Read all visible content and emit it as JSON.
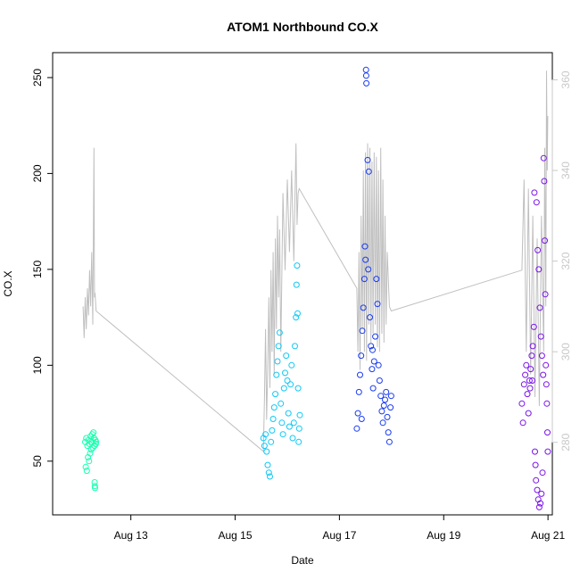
{
  "chart_data": {
    "type": "scatter",
    "title": "ATOM1 Northbound CO.X",
    "xlabel": "Date",
    "ylabel": "CO.X",
    "xlim": [
      "2016-08-11 12:00",
      "2016-08-21 02:00"
    ],
    "ylim": [
      22,
      263
    ],
    "y2lim": [
      264,
      366
    ],
    "grid": false,
    "legend": "none",
    "x_ticks": [
      "2016-08-13",
      "2016-08-15",
      "2016-08-17",
      "2016-08-19",
      "2016-08-21"
    ],
    "x_tick_labels": [
      "Aug 13",
      "Aug 15",
      "Aug 17",
      "Aug 19",
      "Aug 21"
    ],
    "y_ticks": [
      50,
      100,
      150,
      200,
      250
    ],
    "y2_ticks": [
      280,
      300,
      320,
      340,
      360
    ],
    "colors": {
      "background": "#ffffff",
      "axis": "#000000",
      "secondary_axis": "#c8c8c8",
      "secondary_line": "#bfbfbf",
      "point_fill": "none"
    },
    "series": [
      {
        "color": "#19ffb0",
        "points": [
          [
            "2016-08-12 03:00",
            60
          ],
          [
            "2016-08-12 03:30",
            62
          ],
          [
            "2016-08-12 04:00",
            58
          ],
          [
            "2016-08-12 04:30",
            61
          ],
          [
            "2016-08-12 05:00",
            59
          ],
          [
            "2016-08-12 05:30",
            63
          ],
          [
            "2016-08-12 06:00",
            60
          ],
          [
            "2016-08-12 06:30",
            57
          ],
          [
            "2016-08-12 07:00",
            62
          ],
          [
            "2016-08-12 03:15",
            47
          ],
          [
            "2016-08-12 03:45",
            45
          ],
          [
            "2016-08-12 04:15",
            52
          ],
          [
            "2016-08-12 04:45",
            50
          ],
          [
            "2016-08-12 05:15",
            54
          ],
          [
            "2016-08-12 05:45",
            56
          ],
          [
            "2016-08-12 06:15",
            64
          ],
          [
            "2016-08-12 06:45",
            65
          ],
          [
            "2016-08-12 07:15",
            58
          ],
          [
            "2016-08-12 07:20",
            39
          ],
          [
            "2016-08-12 07:25",
            37
          ],
          [
            "2016-08-12 07:30",
            36
          ],
          [
            "2016-08-12 07:40",
            61
          ],
          [
            "2016-08-12 07:50",
            59
          ],
          [
            "2016-08-12 08:00",
            60
          ]
        ]
      },
      {
        "color": "#10c8f5",
        "points": [
          [
            "2016-08-15 13:00",
            62
          ],
          [
            "2016-08-15 13:30",
            58
          ],
          [
            "2016-08-15 14:00",
            64
          ],
          [
            "2016-08-15 14:30",
            55
          ],
          [
            "2016-08-15 15:00",
            48
          ],
          [
            "2016-08-15 15:30",
            44
          ],
          [
            "2016-08-15 16:00",
            42
          ],
          [
            "2016-08-15 16:30",
            60
          ],
          [
            "2016-08-15 17:00",
            66
          ],
          [
            "2016-08-15 17:30",
            72
          ],
          [
            "2016-08-15 18:00",
            78
          ],
          [
            "2016-08-15 18:30",
            85
          ],
          [
            "2016-08-15 19:00",
            95
          ],
          [
            "2016-08-15 19:30",
            102
          ],
          [
            "2016-08-15 20:00",
            110
          ],
          [
            "2016-08-15 20:30",
            117
          ],
          [
            "2016-08-15 21:00",
            80
          ],
          [
            "2016-08-15 21:30",
            70
          ],
          [
            "2016-08-15 22:00",
            64
          ],
          [
            "2016-08-15 22:30",
            88
          ],
          [
            "2016-08-15 23:00",
            96
          ],
          [
            "2016-08-15 23:30",
            105
          ],
          [
            "2016-08-16 00:00",
            92
          ],
          [
            "2016-08-16 00:30",
            75
          ],
          [
            "2016-08-16 01:00",
            68
          ],
          [
            "2016-08-16 01:30",
            90
          ],
          [
            "2016-08-16 02:00",
            100
          ],
          [
            "2016-08-16 02:30",
            62
          ],
          [
            "2016-08-16 03:00",
            70
          ],
          [
            "2016-08-16 03:30",
            110
          ],
          [
            "2016-08-16 04:00",
            125
          ],
          [
            "2016-08-16 04:15",
            142
          ],
          [
            "2016-08-16 04:30",
            152
          ],
          [
            "2016-08-16 04:45",
            127
          ],
          [
            "2016-08-16 05:00",
            88
          ],
          [
            "2016-08-16 05:15",
            60
          ],
          [
            "2016-08-16 05:30",
            67
          ],
          [
            "2016-08-16 05:45",
            74
          ]
        ]
      },
      {
        "color": "#1a3cf0",
        "points": [
          [
            "2016-08-17 08:00",
            67
          ],
          [
            "2016-08-17 08:30",
            75
          ],
          [
            "2016-08-17 09:00",
            86
          ],
          [
            "2016-08-17 09:30",
            95
          ],
          [
            "2016-08-17 10:00",
            105
          ],
          [
            "2016-08-17 10:30",
            118
          ],
          [
            "2016-08-17 11:00",
            130
          ],
          [
            "2016-08-17 11:30",
            145
          ],
          [
            "2016-08-17 11:45",
            162
          ],
          [
            "2016-08-17 12:00",
            155
          ],
          [
            "2016-08-17 12:15",
            254
          ],
          [
            "2016-08-17 12:20",
            251
          ],
          [
            "2016-08-17 12:25",
            247
          ],
          [
            "2016-08-17 13:00",
            207
          ],
          [
            "2016-08-17 13:30",
            201
          ],
          [
            "2016-08-17 14:00",
            125
          ],
          [
            "2016-08-17 14:30",
            110
          ],
          [
            "2016-08-17 15:00",
            98
          ],
          [
            "2016-08-17 15:30",
            88
          ],
          [
            "2016-08-17 16:00",
            102
          ],
          [
            "2016-08-17 16:30",
            115
          ],
          [
            "2016-08-17 17:00",
            145
          ],
          [
            "2016-08-17 17:30",
            132
          ],
          [
            "2016-08-17 18:00",
            100
          ],
          [
            "2016-08-17 18:30",
            92
          ],
          [
            "2016-08-17 19:00",
            84
          ],
          [
            "2016-08-17 19:30",
            76
          ],
          [
            "2016-08-17 20:00",
            70
          ],
          [
            "2016-08-17 20:30",
            79
          ],
          [
            "2016-08-17 21:00",
            82
          ],
          [
            "2016-08-17 21:30",
            86
          ],
          [
            "2016-08-17 22:00",
            73
          ],
          [
            "2016-08-17 22:30",
            65
          ],
          [
            "2016-08-17 23:00",
            60
          ],
          [
            "2016-08-17 23:30",
            78
          ],
          [
            "2016-08-17 23:50",
            84
          ],
          [
            "2016-08-17 10:15",
            72
          ],
          [
            "2016-08-17 13:15",
            150
          ],
          [
            "2016-08-17 15:15",
            108
          ]
        ]
      },
      {
        "color": "#7a14e8",
        "points": [
          [
            "2016-08-20 12:00",
            80
          ],
          [
            "2016-08-20 12:30",
            70
          ],
          [
            "2016-08-20 13:00",
            90
          ],
          [
            "2016-08-20 13:30",
            95
          ],
          [
            "2016-08-20 14:00",
            100
          ],
          [
            "2016-08-20 14:30",
            85
          ],
          [
            "2016-08-20 15:00",
            75
          ],
          [
            "2016-08-20 15:30",
            92
          ],
          [
            "2016-08-20 16:00",
            98
          ],
          [
            "2016-08-20 16:30",
            105
          ],
          [
            "2016-08-20 17:00",
            110
          ],
          [
            "2016-08-20 17:30",
            120
          ],
          [
            "2016-08-20 18:00",
            55
          ],
          [
            "2016-08-20 18:15",
            48
          ],
          [
            "2016-08-20 18:30",
            40
          ],
          [
            "2016-08-20 19:00",
            35
          ],
          [
            "2016-08-20 19:30",
            30
          ],
          [
            "2016-08-20 20:00",
            26
          ],
          [
            "2016-08-20 20:30",
            28
          ],
          [
            "2016-08-20 21:00",
            33
          ],
          [
            "2016-08-20 21:30",
            44
          ],
          [
            "2016-08-20 17:45",
            190
          ],
          [
            "2016-08-20 18:45",
            185
          ],
          [
            "2016-08-20 19:15",
            160
          ],
          [
            "2016-08-20 19:45",
            150
          ],
          [
            "2016-08-20 20:15",
            130
          ],
          [
            "2016-08-20 20:45",
            115
          ],
          [
            "2016-08-20 21:15",
            105
          ],
          [
            "2016-08-20 21:45",
            95
          ],
          [
            "2016-08-20 22:00",
            208
          ],
          [
            "2016-08-20 22:15",
            196
          ],
          [
            "2016-08-20 22:30",
            165
          ],
          [
            "2016-08-20 22:45",
            137
          ],
          [
            "2016-08-20 23:00",
            100
          ],
          [
            "2016-08-20 23:15",
            90
          ],
          [
            "2016-08-20 23:30",
            80
          ],
          [
            "2016-08-20 23:45",
            65
          ],
          [
            "2016-08-20 23:55",
            55
          ],
          [
            "2016-08-20 15:45",
            88
          ],
          [
            "2016-08-20 16:45",
            92
          ]
        ]
      }
    ],
    "secondary_line": {
      "axis": "right",
      "points": [
        [
          "2016-08-12 02:00",
          310
        ],
        [
          "2016-08-12 02:30",
          303
        ],
        [
          "2016-08-12 03:00",
          312
        ],
        [
          "2016-08-12 03:30",
          305
        ],
        [
          "2016-08-12 04:00",
          314
        ],
        [
          "2016-08-12 04:30",
          308
        ],
        [
          "2016-08-12 05:00",
          318
        ],
        [
          "2016-08-12 05:30",
          310
        ],
        [
          "2016-08-12 06:00",
          322
        ],
        [
          "2016-08-12 06:30",
          306
        ],
        [
          "2016-08-12 07:00",
          345
        ],
        [
          "2016-08-12 07:15",
          312
        ],
        [
          "2016-08-12 07:30",
          313
        ],
        [
          "2016-08-12 08:00",
          309
        ],
        [
          "2016-08-15 13:00",
          278
        ],
        [
          "2016-08-15 13:30",
          290
        ],
        [
          "2016-08-15 14:00",
          305
        ],
        [
          "2016-08-15 14:30",
          285
        ],
        [
          "2016-08-15 15:00",
          296
        ],
        [
          "2016-08-15 15:30",
          312
        ],
        [
          "2016-08-15 16:00",
          292
        ],
        [
          "2016-08-15 16:30",
          318
        ],
        [
          "2016-08-15 17:00",
          300
        ],
        [
          "2016-08-15 17:30",
          322
        ],
        [
          "2016-08-15 18:00",
          295
        ],
        [
          "2016-08-15 18:30",
          325
        ],
        [
          "2016-08-15 19:00",
          305
        ],
        [
          "2016-08-15 19:30",
          330
        ],
        [
          "2016-08-15 20:00",
          312
        ],
        [
          "2016-08-15 20:30",
          327
        ],
        [
          "2016-08-15 21:00",
          300
        ],
        [
          "2016-08-15 22:00",
          335
        ],
        [
          "2016-08-15 23:00",
          318
        ],
        [
          "2016-08-16 00:00",
          338
        ],
        [
          "2016-08-16 01:00",
          322
        ],
        [
          "2016-08-16 02:00",
          340
        ],
        [
          "2016-08-16 03:00",
          320
        ],
        [
          "2016-08-16 04:00",
          346
        ],
        [
          "2016-08-16 04:30",
          328
        ],
        [
          "2016-08-16 05:00",
          335
        ],
        [
          "2016-08-16 05:30",
          336
        ],
        [
          "2016-08-17 08:00",
          314
        ],
        [
          "2016-08-17 08:30",
          300
        ],
        [
          "2016-08-17 09:00",
          322
        ],
        [
          "2016-08-17 09:30",
          296
        ],
        [
          "2016-08-17 10:00",
          330
        ],
        [
          "2016-08-17 10:30",
          305
        ],
        [
          "2016-08-17 11:00",
          340
        ],
        [
          "2016-08-17 11:30",
          300
        ],
        [
          "2016-08-17 12:00",
          344
        ],
        [
          "2016-08-17 12:30",
          298
        ],
        [
          "2016-08-17 13:00",
          346
        ],
        [
          "2016-08-17 13:30",
          306
        ],
        [
          "2016-08-17 14:00",
          345
        ],
        [
          "2016-08-17 14:30",
          302
        ],
        [
          "2016-08-17 15:00",
          342
        ],
        [
          "2016-08-17 15:30",
          304
        ],
        [
          "2016-08-17 16:00",
          344
        ],
        [
          "2016-08-17 16:30",
          306
        ],
        [
          "2016-08-17 17:00",
          343
        ],
        [
          "2016-08-17 17:30",
          301
        ],
        [
          "2016-08-17 18:00",
          340
        ],
        [
          "2016-08-17 18:30",
          300
        ],
        [
          "2016-08-17 19:00",
          345
        ],
        [
          "2016-08-17 19:30",
          304
        ],
        [
          "2016-08-17 20:00",
          338
        ],
        [
          "2016-08-17 20:30",
          302
        ],
        [
          "2016-08-17 21:00",
          330
        ],
        [
          "2016-08-17 21:30",
          306
        ],
        [
          "2016-08-17 22:00",
          322
        ],
        [
          "2016-08-17 23:00",
          310
        ],
        [
          "2016-08-17 23:50",
          309
        ],
        [
          "2016-08-20 12:00",
          318
        ],
        [
          "2016-08-20 13:00",
          338
        ],
        [
          "2016-08-20 14:00",
          300
        ],
        [
          "2016-08-20 15:00",
          336
        ],
        [
          "2016-08-20 16:00",
          295
        ],
        [
          "2016-08-20 17:00",
          330
        ],
        [
          "2016-08-20 18:00",
          290
        ],
        [
          "2016-08-20 19:00",
          325
        ],
        [
          "2016-08-20 20:00",
          288
        ],
        [
          "2016-08-20 21:00",
          330
        ],
        [
          "2016-08-20 22:00",
          300
        ],
        [
          "2016-08-20 22:30",
          345
        ],
        [
          "2016-08-20 23:00",
          310
        ],
        [
          "2016-08-20 23:20",
          362
        ],
        [
          "2016-08-20 23:40",
          340
        ],
        [
          "2016-08-20 23:55",
          352
        ]
      ]
    }
  }
}
